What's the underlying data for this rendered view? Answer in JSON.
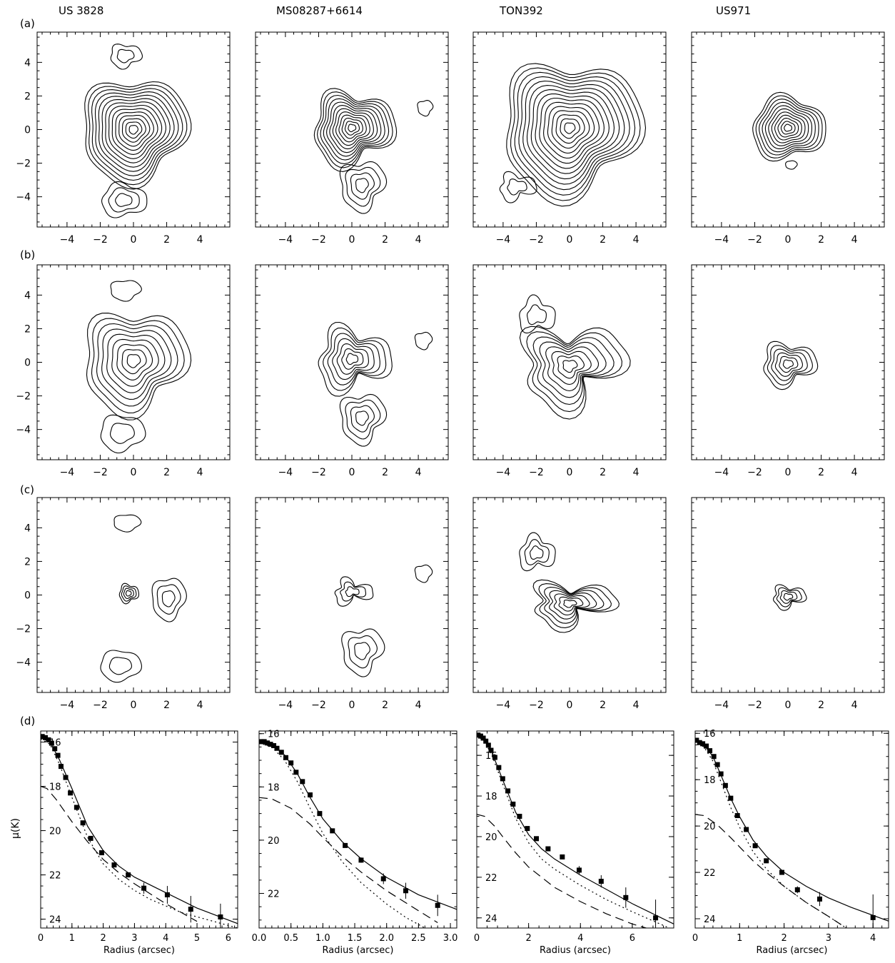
{
  "objects": [
    "US 3828",
    "MS08287+6614",
    "TON392",
    "US971"
  ],
  "row_labels": [
    "(a)",
    "(b)",
    "(c)",
    "(d)"
  ],
  "contour_axis": {
    "range": [
      -5.8,
      5.8
    ],
    "ticks": [
      -4,
      -2,
      0,
      2,
      4
    ],
    "tick_labels": [
      "−4",
      "−2",
      "0",
      "2",
      "4"
    ]
  },
  "chart_data": [
    {
      "panel": "US 3828 (d)",
      "type": "scatter",
      "xlabel": "Radius (arcsec)",
      "ylabel": "μ(K)",
      "xlim": [
        0,
        6.3
      ],
      "ylim": [
        24.4,
        15.5
      ],
      "xticks": [
        0,
        1,
        2,
        3,
        4,
        5,
        6
      ],
      "yticks": [
        16,
        18,
        20,
        22,
        24
      ],
      "points": [
        [
          0.05,
          15.75
        ],
        [
          0.15,
          15.8
        ],
        [
          0.25,
          15.9
        ],
        [
          0.35,
          16.05
        ],
        [
          0.45,
          16.3
        ],
        [
          0.55,
          16.6
        ],
        [
          0.65,
          17.1
        ],
        [
          0.8,
          17.6
        ],
        [
          0.95,
          18.3
        ],
        [
          1.15,
          18.95
        ],
        [
          1.35,
          19.65
        ],
        [
          1.6,
          20.35
        ],
        [
          1.95,
          21.0
        ],
        [
          2.35,
          21.55
        ],
        [
          2.8,
          22.0
        ],
        [
          3.3,
          22.6
        ],
        [
          4.05,
          22.9
        ],
        [
          4.8,
          23.55
        ],
        [
          5.75,
          23.9
        ]
      ],
      "errors": [
        0,
        0,
        0,
        0,
        0,
        0,
        0,
        0,
        0,
        0,
        0,
        0,
        0,
        0,
        0,
        0.25,
        0.4,
        0.6,
        0.6
      ],
      "series": [
        {
          "name": "",
          "style": "solid",
          "x": [
            0,
            0.3,
            0.6,
            1,
            1.5,
            2,
            2.5,
            3,
            4,
            5,
            6.3
          ],
          "y": [
            15.8,
            16.0,
            16.8,
            18.1,
            19.8,
            20.9,
            21.6,
            22.1,
            22.8,
            23.5,
            24.2
          ]
        },
        {
          "name": "",
          "style": "dotted",
          "x": [
            0,
            0.3,
            0.6,
            1,
            1.5,
            2,
            2.5,
            3,
            3.5,
            4.5,
            6.3
          ],
          "y": [
            15.85,
            16.1,
            17.0,
            18.5,
            20.3,
            21.5,
            22.2,
            22.7,
            23.1,
            23.7,
            24.4
          ]
        },
        {
          "name": "",
          "style": "dashed",
          "x": [
            0,
            0.2,
            0.5,
            1,
            1.5,
            2,
            2.5,
            3,
            4,
            5
          ],
          "y": [
            18.0,
            18.1,
            18.6,
            19.6,
            20.5,
            21.3,
            21.9,
            22.4,
            23.3,
            24.1
          ]
        }
      ]
    },
    {
      "panel": "MS08287+6614 (d)",
      "type": "scatter",
      "xlabel": "Radius (arcsec)",
      "ylabel": "",
      "xlim": [
        0,
        3.1
      ],
      "ylim": [
        23.3,
        15.9
      ],
      "xticks": [
        0.0,
        0.5,
        1.0,
        1.5,
        2.0,
        2.5,
        3.0
      ],
      "yticks": [
        16,
        18,
        20,
        22
      ],
      "tick_labels": [
        "0.0",
        "0.5",
        "1.0",
        "1.5",
        "2.0",
        "2.5",
        "3.0"
      ],
      "points": [
        [
          0.03,
          16.3
        ],
        [
          0.08,
          16.3
        ],
        [
          0.13,
          16.35
        ],
        [
          0.18,
          16.4
        ],
        [
          0.23,
          16.45
        ],
        [
          0.28,
          16.55
        ],
        [
          0.35,
          16.7
        ],
        [
          0.42,
          16.9
        ],
        [
          0.5,
          17.1
        ],
        [
          0.58,
          17.45
        ],
        [
          0.68,
          17.8
        ],
        [
          0.8,
          18.3
        ],
        [
          0.95,
          19.0
        ],
        [
          1.15,
          19.65
        ],
        [
          1.35,
          20.2
        ],
        [
          1.6,
          20.75
        ],
        [
          1.95,
          21.45
        ],
        [
          2.3,
          21.9
        ],
        [
          2.8,
          22.45
        ]
      ],
      "errors": [
        0,
        0,
        0,
        0,
        0,
        0,
        0,
        0,
        0,
        0,
        0,
        0,
        0,
        0,
        0,
        0.1,
        0.2,
        0.3,
        0.4
      ],
      "series": [
        {
          "name": "",
          "style": "solid",
          "x": [
            0,
            0.2,
            0.4,
            0.6,
            0.8,
            1.0,
            1.3,
            1.6,
            2.0,
            2.5,
            3.1
          ],
          "y": [
            16.3,
            16.4,
            16.8,
            17.5,
            18.4,
            19.2,
            20.05,
            20.7,
            21.4,
            22.05,
            22.6
          ]
        },
        {
          "name": "",
          "style": "dotted",
          "x": [
            0,
            0.2,
            0.4,
            0.6,
            0.8,
            1.0,
            1.3,
            1.6,
            2.0,
            2.3,
            2.6
          ],
          "y": [
            16.35,
            16.5,
            17.0,
            17.8,
            18.8,
            19.75,
            20.8,
            21.6,
            22.4,
            22.9,
            23.3
          ]
        },
        {
          "name": "",
          "style": "dashed",
          "x": [
            0,
            0.2,
            0.5,
            0.8,
            1.0,
            1.3,
            1.6,
            2.0,
            2.4,
            2.8
          ],
          "y": [
            18.4,
            18.45,
            18.8,
            19.4,
            19.9,
            20.6,
            21.2,
            21.9,
            22.5,
            23.1
          ]
        }
      ]
    },
    {
      "panel": "TON392 (d)",
      "type": "scatter",
      "xlabel": "Radius (arcsec)",
      "ylabel": "",
      "xlim": [
        0,
        7.6
      ],
      "ylim": [
        24.5,
        14.8
      ],
      "xticks": [
        0,
        2,
        4,
        6
      ],
      "yticks": [
        16,
        18,
        20,
        22,
        24
      ],
      "points": [
        [
          0.05,
          15.0
        ],
        [
          0.15,
          15.05
        ],
        [
          0.25,
          15.15
        ],
        [
          0.35,
          15.3
        ],
        [
          0.45,
          15.5
        ],
        [
          0.55,
          15.75
        ],
        [
          0.7,
          16.1
        ],
        [
          0.85,
          16.6
        ],
        [
          1.0,
          17.15
        ],
        [
          1.2,
          17.75
        ],
        [
          1.4,
          18.4
        ],
        [
          1.65,
          19.0
        ],
        [
          1.95,
          19.6
        ],
        [
          2.3,
          20.1
        ],
        [
          2.75,
          20.6
        ],
        [
          3.3,
          21.0
        ],
        [
          3.95,
          21.65
        ],
        [
          4.8,
          22.2
        ],
        [
          5.75,
          23.0
        ],
        [
          6.9,
          24.0
        ]
      ],
      "errors": [
        0,
        0,
        0,
        0,
        0,
        0,
        0,
        0,
        0,
        0,
        0,
        0,
        0,
        0,
        0,
        0,
        0.2,
        0.3,
        0.5,
        0.9
      ],
      "series": [
        {
          "name": "",
          "style": "solid",
          "x": [
            0,
            0.3,
            0.6,
            1,
            1.5,
            2,
            2.5,
            3,
            4,
            5,
            6,
            7.6
          ],
          "y": [
            15.0,
            15.2,
            15.9,
            17.2,
            18.8,
            19.9,
            20.6,
            21.1,
            21.9,
            22.6,
            23.3,
            24.3
          ]
        },
        {
          "name": "",
          "style": "dotted",
          "x": [
            0,
            0.3,
            0.6,
            1,
            1.5,
            2,
            2.5,
            3,
            4,
            5,
            6,
            7.6
          ],
          "y": [
            15.05,
            15.3,
            16.05,
            17.4,
            19.1,
            20.3,
            21.1,
            21.6,
            22.4,
            23.1,
            23.7,
            24.6
          ]
        },
        {
          "name": "",
          "style": "dashed",
          "x": [
            0,
            0.3,
            0.7,
            1,
            1.5,
            2,
            3,
            4,
            5,
            6,
            6.8
          ],
          "y": [
            18.9,
            19.0,
            19.5,
            20.0,
            20.8,
            21.5,
            22.5,
            23.2,
            23.8,
            24.3,
            24.6
          ]
        }
      ]
    },
    {
      "panel": "US971 (d)",
      "type": "scatter",
      "xlabel": "Radius (arcsec)",
      "ylabel": "",
      "xlim": [
        0,
        4.35
      ],
      "ylim": [
        24.4,
        15.9
      ],
      "xticks": [
        0,
        1,
        2,
        3,
        4
      ],
      "yticks": [
        16,
        18,
        20,
        22,
        24
      ],
      "points": [
        [
          0.03,
          16.3
        ],
        [
          0.1,
          16.4
        ],
        [
          0.17,
          16.45
        ],
        [
          0.25,
          16.55
        ],
        [
          0.33,
          16.75
        ],
        [
          0.42,
          17.0
        ],
        [
          0.5,
          17.35
        ],
        [
          0.58,
          17.75
        ],
        [
          0.68,
          18.25
        ],
        [
          0.8,
          18.8
        ],
        [
          0.95,
          19.55
        ],
        [
          1.15,
          20.15
        ],
        [
          1.35,
          20.85
        ],
        [
          1.6,
          21.5
        ],
        [
          1.95,
          22.0
        ],
        [
          2.3,
          22.75
        ],
        [
          2.8,
          23.15
        ],
        [
          4.0,
          23.95
        ]
      ],
      "errors": [
        0,
        0,
        0,
        0,
        0,
        0,
        0,
        0,
        0,
        0,
        0,
        0,
        0,
        0,
        0,
        0.15,
        0.3,
        1.0
      ],
      "series": [
        {
          "name": "",
          "style": "solid",
          "x": [
            0,
            0.2,
            0.4,
            0.6,
            0.8,
            1,
            1.3,
            1.6,
            2,
            2.5,
            3,
            3.5,
            4.35
          ],
          "y": [
            16.3,
            16.5,
            17.0,
            17.9,
            18.8,
            19.6,
            20.6,
            21.3,
            22.0,
            22.6,
            23.1,
            23.5,
            24.1
          ]
        },
        {
          "name": "",
          "style": "dotted",
          "x": [
            0,
            0.2,
            0.4,
            0.6,
            0.8,
            1,
            1.3,
            1.6,
            2,
            2.5,
            3,
            3.4
          ],
          "y": [
            16.35,
            16.6,
            17.2,
            18.2,
            19.2,
            20.05,
            21.1,
            21.85,
            22.6,
            23.3,
            23.9,
            24.4
          ]
        },
        {
          "name": "",
          "style": "dashed",
          "x": [
            0,
            0.2,
            0.5,
            0.8,
            1,
            1.3,
            1.6,
            2,
            2.5,
            3,
            3.4
          ],
          "y": [
            19.5,
            19.55,
            19.95,
            20.5,
            20.9,
            21.5,
            22.0,
            22.6,
            23.3,
            23.9,
            24.4
          ]
        }
      ]
    }
  ]
}
